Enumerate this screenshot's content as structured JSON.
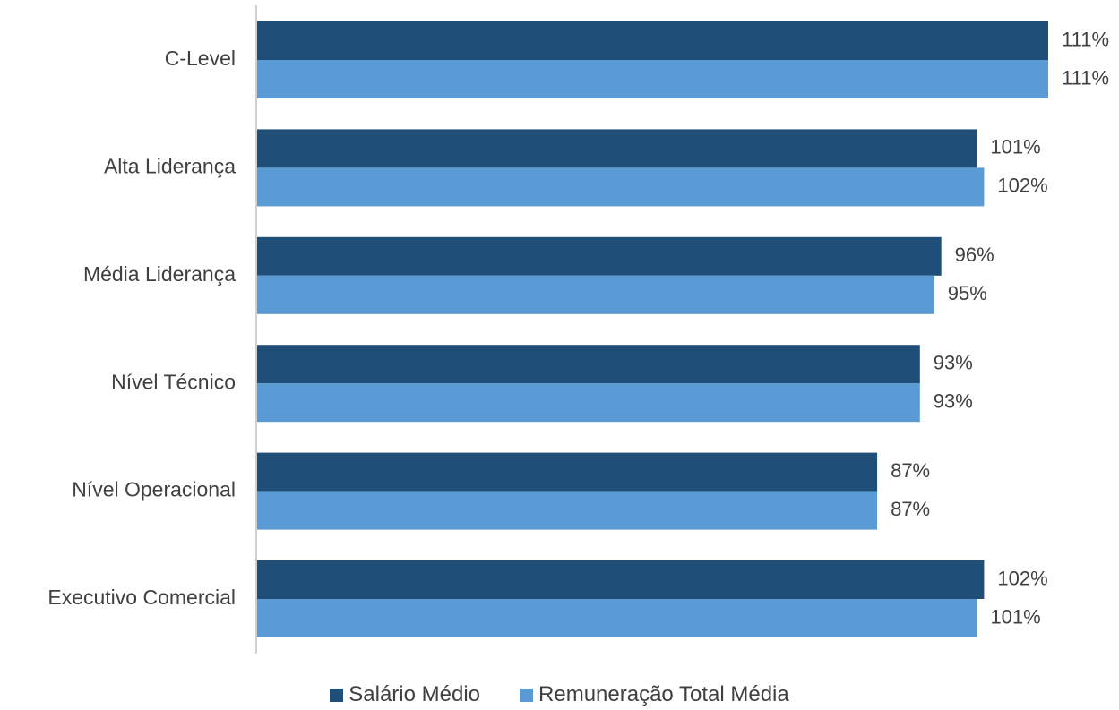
{
  "chart_data": {
    "type": "bar",
    "orientation": "horizontal",
    "categories": [
      "C-Level",
      "Alta Liderança",
      "Média Liderança",
      "Nível Técnico",
      "Nível Operacional",
      "Executivo Comercial"
    ],
    "series": [
      {
        "name": "Salário Médio",
        "color": "#1f4e79",
        "values": [
          111,
          101,
          96,
          93,
          87,
          102
        ],
        "labels": [
          "111%",
          "101%",
          "96%",
          "93%",
          "87%",
          "102%"
        ]
      },
      {
        "name": "Remuneração Total Média",
        "color": "#5b9bd5",
        "values": [
          111,
          102,
          95,
          93,
          87,
          101
        ],
        "labels": [
          "111%",
          "102%",
          "95%",
          "93%",
          "87%",
          "101%"
        ]
      }
    ],
    "value_unit": "%",
    "xlim": [
      0,
      111
    ],
    "grid": false,
    "legend_position": "bottom"
  }
}
